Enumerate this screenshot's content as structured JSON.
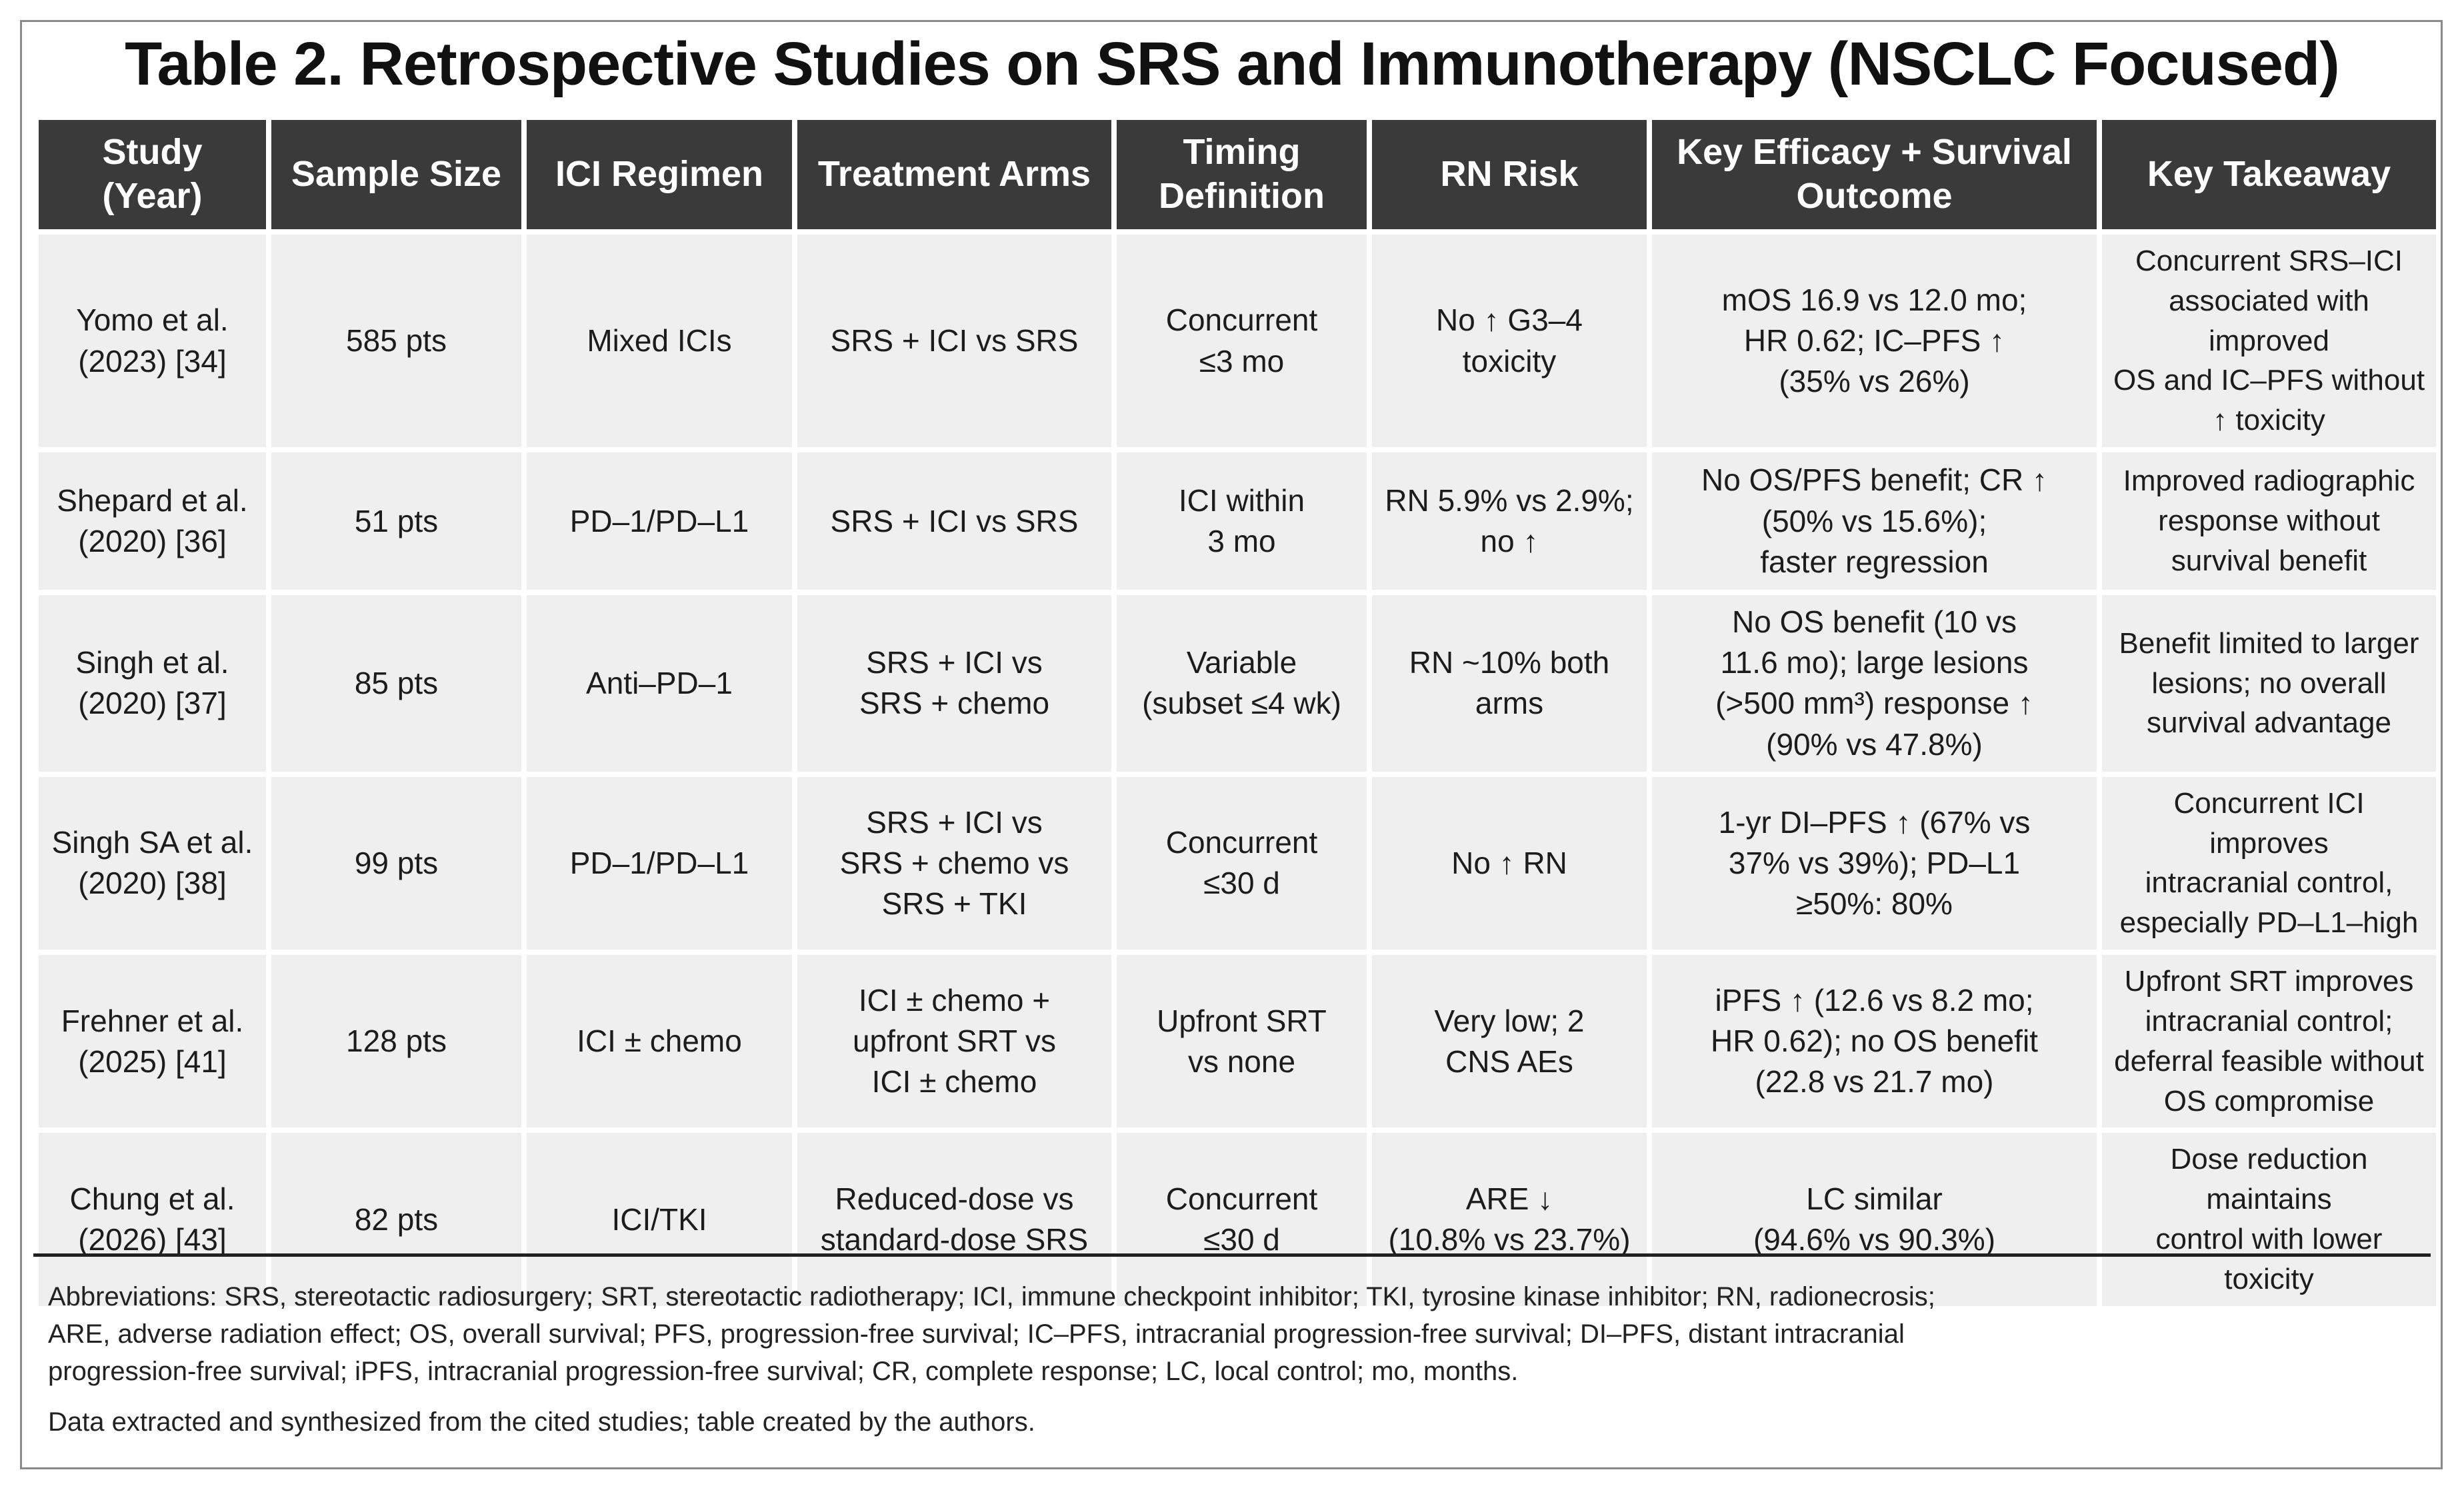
{
  "title": "Table 2. Retrospective Studies on SRS and Immunotherapy (NSCLC Focused)",
  "columns": [
    [
      "Study",
      "(Year)"
    ],
    [
      "Sample Size"
    ],
    [
      "ICI Regimen"
    ],
    [
      "Treatment Arms"
    ],
    [
      "Timing",
      "Definition"
    ],
    [
      "RN Risk"
    ],
    [
      "Key Efficacy + Survival Outcome"
    ],
    [
      "Key Takeaway"
    ]
  ],
  "rows": [
    {
      "study": [
        "Yomo et al.",
        "(2023) [34]"
      ],
      "sample": [
        "585 pts"
      ],
      "regimen": [
        "Mixed ICIs"
      ],
      "arms": [
        "SRS + ICI vs SRS"
      ],
      "timing": [
        "Concurrent",
        "≤3 mo"
      ],
      "rn": [
        "No ↑ G3–4",
        "toxicity"
      ],
      "efficacy": [
        "mOS 16.9 vs 12.0 mo;",
        "HR 0.62; IC–PFS ↑",
        "(35% vs 26%)"
      ],
      "takeaway": [
        "Concurrent SRS–ICI",
        "associated with improved",
        "OS and IC–PFS without",
        "↑ toxicity"
      ]
    },
    {
      "study": [
        "Shepard et al.",
        "(2020) [36]"
      ],
      "sample": [
        "51 pts"
      ],
      "regimen": [
        "PD–1/PD–L1"
      ],
      "arms": [
        "SRS + ICI vs SRS"
      ],
      "timing": [
        "ICI within",
        "3 mo"
      ],
      "rn": [
        "RN 5.9% vs 2.9%;",
        "no ↑"
      ],
      "efficacy": [
        "No OS/PFS benefit; CR ↑",
        "(50% vs 15.6%);",
        "faster regression"
      ],
      "takeaway": [
        "Improved radiographic",
        "response without",
        "survival benefit"
      ]
    },
    {
      "study": [
        "Singh et al.",
        "(2020) [37]"
      ],
      "sample": [
        "85 pts"
      ],
      "regimen": [
        "Anti–PD–1"
      ],
      "arms": [
        "SRS + ICI vs",
        "SRS + chemo"
      ],
      "timing": [
        "Variable",
        "(subset ≤4 wk)"
      ],
      "rn": [
        "RN ~10% both",
        "arms"
      ],
      "efficacy": [
        "No OS benefit (10 vs",
        "11.6 mo); large lesions",
        "(>500 mm³) response ↑",
        "(90% vs 47.8%)"
      ],
      "takeaway": [
        "Benefit limited to larger",
        "lesions; no overall",
        "survival advantage"
      ]
    },
    {
      "study": [
        "Singh SA et al.",
        "(2020) [38]"
      ],
      "sample": [
        "99 pts"
      ],
      "regimen": [
        "PD–1/PD–L1"
      ],
      "arms": [
        "SRS + ICI vs",
        "SRS + chemo vs",
        "SRS + TKI"
      ],
      "timing": [
        "Concurrent",
        "≤30 d"
      ],
      "rn": [
        "No ↑ RN"
      ],
      "efficacy": [
        "1-yr DI–PFS ↑ (67% vs",
        "37% vs 39%); PD–L1",
        "≥50%: 80%"
      ],
      "takeaway": [
        "Concurrent ICI improves",
        "intracranial control,",
        "especially PD–L1–high"
      ]
    },
    {
      "study": [
        "Frehner et al.",
        "(2025) [41]"
      ],
      "sample": [
        "128 pts"
      ],
      "regimen": [
        "ICI ± chemo"
      ],
      "arms": [
        "ICI ± chemo +",
        "upfront SRT vs",
        "ICI ± chemo"
      ],
      "timing": [
        "Upfront SRT",
        "vs none"
      ],
      "rn": [
        "Very low; 2",
        "CNS AEs"
      ],
      "efficacy": [
        "iPFS ↑ (12.6 vs 8.2 mo;",
        "HR 0.62); no OS benefit",
        "(22.8 vs 21.7 mo)"
      ],
      "takeaway": [
        "Upfront SRT improves",
        "intracranial control;",
        "deferral feasible without",
        "OS compromise"
      ]
    },
    {
      "study": [
        "Chung et al.",
        "(2026) [43]"
      ],
      "sample": [
        "82 pts"
      ],
      "regimen": [
        "ICI/TKI"
      ],
      "arms": [
        "Reduced-dose vs",
        "standard-dose SRS"
      ],
      "timing": [
        "Concurrent",
        "≤30 d"
      ],
      "rn": [
        "ARE ↓",
        "(10.8% vs 23.7%)"
      ],
      "efficacy": [
        "LC similar",
        "(94.6% vs 90.3%)"
      ],
      "takeaway": [
        "Dose reduction maintains",
        "control with lower toxicity"
      ]
    }
  ],
  "footnotes": {
    "abbreviations": [
      "Abbreviations: SRS, stereotactic radiosurgery; SRT, stereotactic radiotherapy; ICI, immune checkpoint inhibitor; TKI, tyrosine kinase inhibitor; RN, radionecrosis;",
      "ARE, adverse radiation effect; OS, overall survival; PFS, progression-free survival; IC–PFS, intracranial progression-free survival; DI–PFS, distant intracranial",
      "progression-free survival; iPFS, intracranial progression-free survival; CR, complete response; LC, local control; mo, months."
    ],
    "source": "Data extracted and synthesized from the cited studies; table created by the authors."
  }
}
